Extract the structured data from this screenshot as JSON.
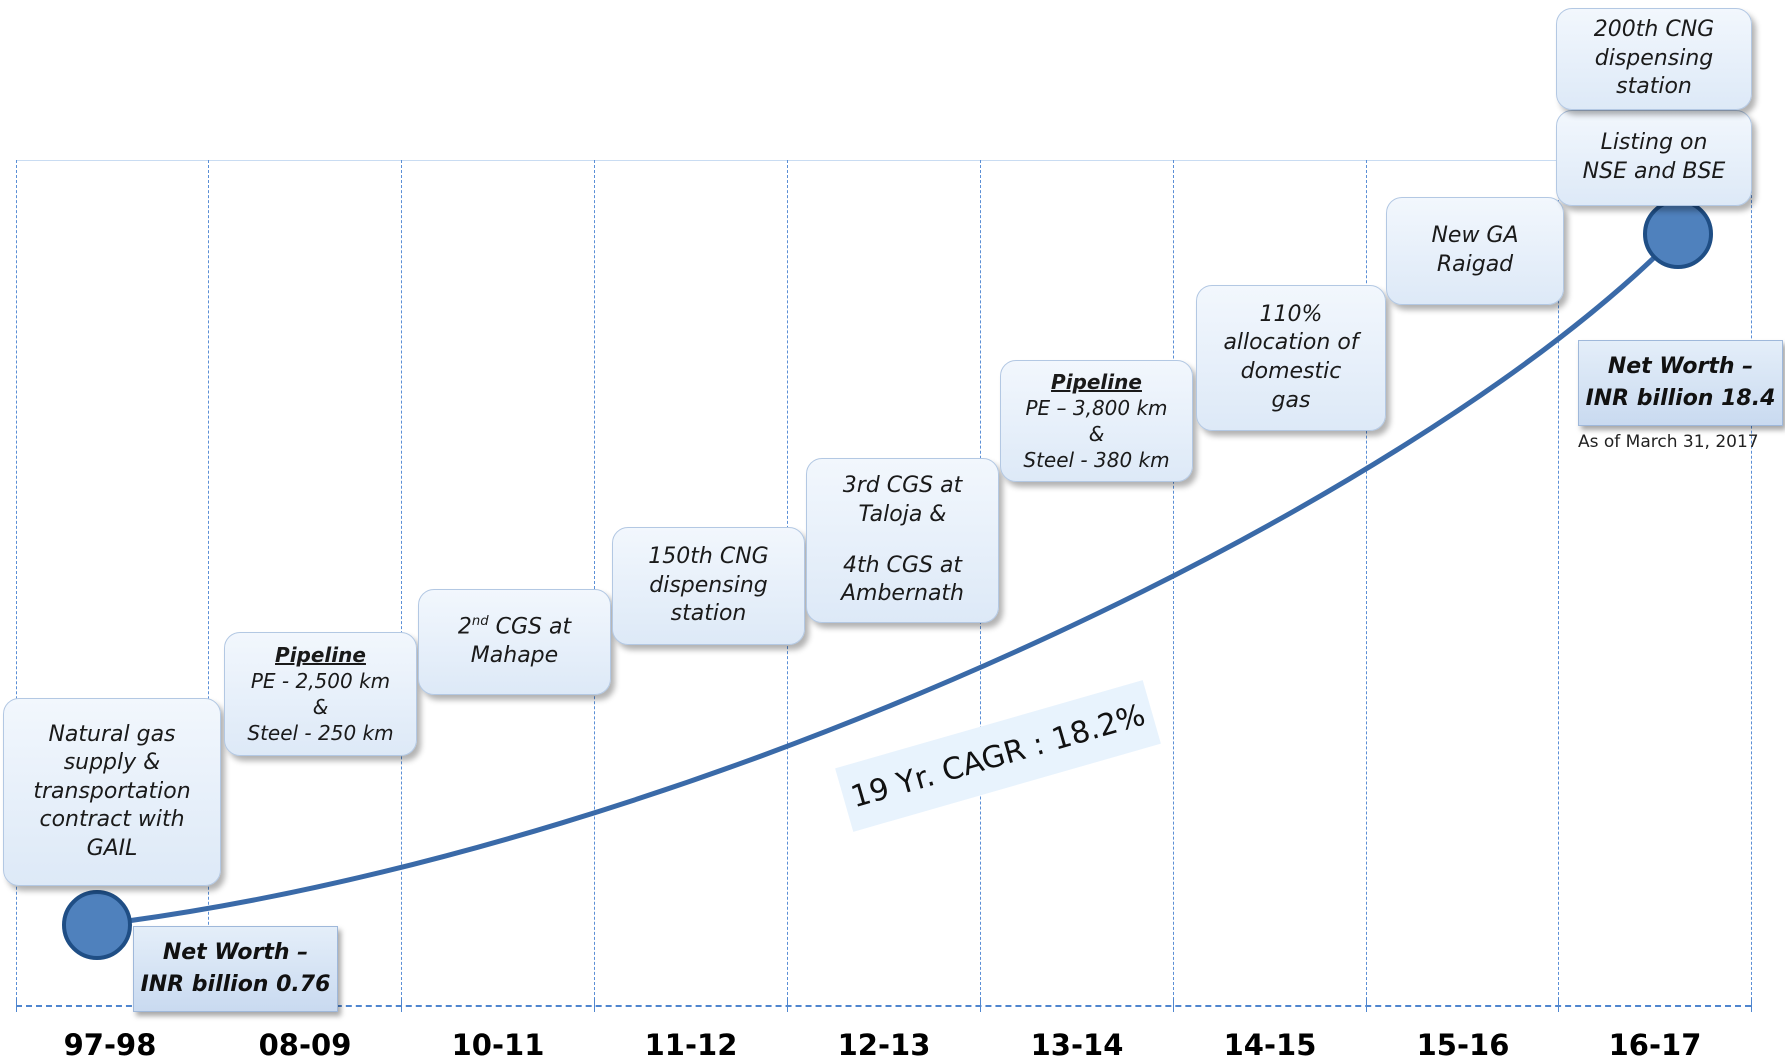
{
  "years": [
    "97-98",
    "08-09",
    "10-11",
    "11-12",
    "12-13",
    "13-14",
    "14-15",
    "15-16",
    "16-17"
  ],
  "milestones": [
    {
      "id": "m1",
      "lines": [
        "Natural gas",
        "supply &",
        "transportation",
        "contract with",
        "GAIL"
      ]
    },
    {
      "id": "m2",
      "title": "Pipeline",
      "lines": [
        "PE - 2,500 km",
        "&",
        "Steel - 250 km"
      ]
    },
    {
      "id": "m3",
      "prefix": "2",
      "sup": "nd",
      "first_rest": " CGS at",
      "second": "Mahape"
    },
    {
      "id": "m4",
      "lines": [
        "150th CNG",
        "dispensing",
        "station"
      ]
    },
    {
      "id": "m5",
      "lines": [
        "3rd CGS at",
        "Taloja &",
        "",
        "4th CGS at",
        "Ambernath"
      ]
    },
    {
      "id": "m6",
      "title": "Pipeline",
      "lines": [
        "PE – 3,800 km",
        "&",
        "Steel - 380 km"
      ]
    },
    {
      "id": "m7",
      "lines": [
        "110%",
        "allocation of",
        "domestic",
        "gas"
      ]
    },
    {
      "id": "m8",
      "lines": [
        "New GA",
        "Raigad"
      ]
    },
    {
      "id": "m9",
      "lines": [
        "Listing on",
        "NSE and BSE"
      ]
    },
    {
      "id": "m10",
      "lines": [
        "200th CNG",
        "dispensing",
        "station"
      ]
    }
  ],
  "net_worth_start": {
    "line1": "Net Worth –",
    "line2": "INR billion 0.76"
  },
  "net_worth_end": {
    "line1": "Net Worth –",
    "line2": "INR billion 18.4"
  },
  "as_of": "As of March 31, 2017",
  "cagr_label": "19 Yr. CAGR : 18.2%",
  "colors": {
    "curve": "#3a6aa8",
    "node_fill": "#4f81bd",
    "node_stroke": "#1f4e85",
    "grid": "#5b8fd6"
  }
}
